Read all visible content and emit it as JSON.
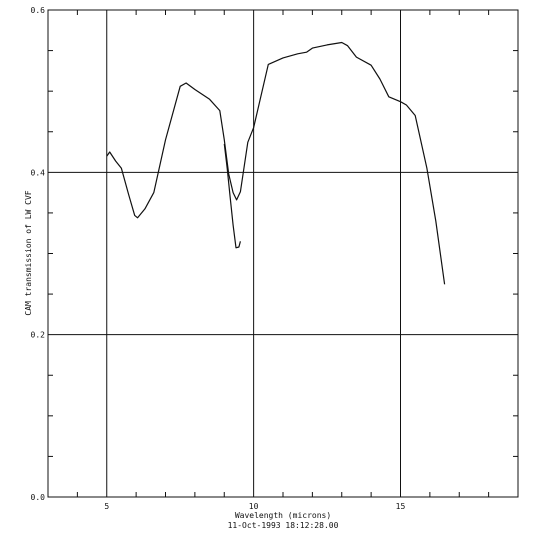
{
  "chart_data": {
    "type": "line",
    "title": "",
    "xlabel": "Wavelength (microns)",
    "ylabel": "CAM transmission of LW CVF",
    "timestamp": "11-Oct-1993 18:12:28.00",
    "xlim": [
      3,
      19
    ],
    "ylim": [
      0.0,
      0.6
    ],
    "x_ticks": [
      5,
      10,
      15
    ],
    "x_tick_labels": [
      "5",
      "10",
      "15"
    ],
    "y_ticks": [
      0.0,
      0.2,
      0.4,
      0.6
    ],
    "y_tick_labels": [
      "0.0",
      "0.2",
      "0.4",
      "0.6"
    ],
    "grid": true,
    "series": [
      {
        "x": [
          5.0,
          5.1,
          5.3,
          5.5,
          5.75,
          5.95,
          6.05,
          6.3,
          6.6,
          7.0,
          7.5,
          7.7,
          8.0,
          8.5,
          8.85,
          9.0,
          9.15,
          9.3,
          9.42,
          9.55,
          9.8,
          10.0,
          10.5,
          11.0,
          11.5,
          11.8,
          12.0,
          12.5,
          13.0,
          13.2,
          13.5,
          14.0,
          14.3,
          14.6,
          15.0,
          15.2,
          15.5,
          15.9,
          16.2,
          16.5
        ],
        "y": [
          0.42,
          0.425,
          0.414,
          0.405,
          0.372,
          0.347,
          0.344,
          0.355,
          0.375,
          0.44,
          0.506,
          0.51,
          0.502,
          0.49,
          0.476,
          0.44,
          0.398,
          0.375,
          0.366,
          0.376,
          0.437,
          0.455,
          0.533,
          0.541,
          0.546,
          0.548,
          0.553,
          0.557,
          0.56,
          0.556,
          0.542,
          0.532,
          0.515,
          0.493,
          0.487,
          0.483,
          0.47,
          0.405,
          0.34,
          0.262
        ]
      },
      {
        "x": [
          9.0,
          9.1,
          9.2,
          9.3,
          9.4,
          9.5,
          9.55
        ],
        "y": [
          0.435,
          0.405,
          0.37,
          0.335,
          0.307,
          0.308,
          0.315
        ]
      }
    ]
  }
}
